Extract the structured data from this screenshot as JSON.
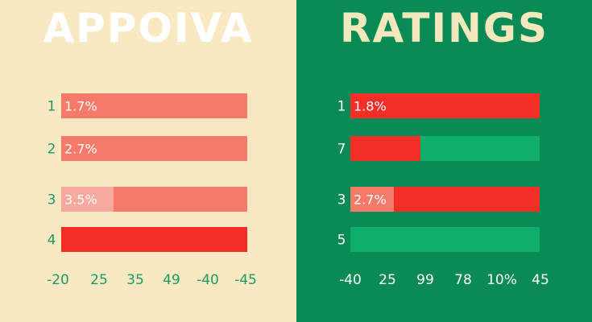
{
  "colors": {
    "left_bg": "#f8e9c2",
    "right_bg": "#0a8a55",
    "bar_light": "#f57a6a",
    "bar_red": "#f22e27",
    "bar_pale": "#f7a9a0",
    "bar_green": "#0fae6a",
    "left_text": "#1e9a66",
    "right_text": "#ffffff"
  },
  "chart_data": [
    {
      "type": "bar",
      "title": "APPOIVA",
      "orientation": "horizontal",
      "x_tick_labels": [
        "-20",
        "25",
        "35",
        "49",
        "-40",
        "-45"
      ],
      "rows": [
        {
          "label": "1",
          "bar_label": "1.7%",
          "segments": [
            {
              "fraction": 1.0,
              "color": "#f57a6a"
            }
          ]
        },
        {
          "label": "2",
          "bar_label": "2.7%",
          "segments": [
            {
              "fraction": 1.0,
              "color": "#f57a6a"
            }
          ]
        },
        {
          "label": "3",
          "bar_label": "3.5%",
          "segments": [
            {
              "fraction": 0.28,
              "color": "#f7a9a0"
            },
            {
              "fraction": 0.72,
              "color": "#f57a6a"
            }
          ]
        },
        {
          "label": "4",
          "bar_label": "",
          "segments": [
            {
              "fraction": 1.0,
              "color": "#f22e27"
            }
          ]
        }
      ]
    },
    {
      "type": "bar",
      "title": "RATINGS",
      "orientation": "horizontal",
      "x_tick_labels": [
        "-40",
        "25",
        "99",
        "78",
        "10%",
        "45"
      ],
      "rows": [
        {
          "label": "1",
          "bar_label": "1.8%",
          "segments": [
            {
              "fraction": 1.0,
              "color": "#f22e27"
            }
          ]
        },
        {
          "label": "7",
          "bar_label": "",
          "segments": [
            {
              "fraction": 0.37,
              "color": "#f22e27"
            },
            {
              "fraction": 0.63,
              "color": "#0fae6a"
            }
          ]
        },
        {
          "label": "3",
          "bar_label": "2.7%",
          "segments": [
            {
              "fraction": 0.23,
              "color": "#f57a6a"
            },
            {
              "fraction": 0.77,
              "color": "#f22e27"
            }
          ]
        },
        {
          "label": "5",
          "bar_label": "",
          "segments": [
            {
              "fraction": 1.0,
              "color": "#0fae6a"
            }
          ]
        }
      ]
    }
  ]
}
